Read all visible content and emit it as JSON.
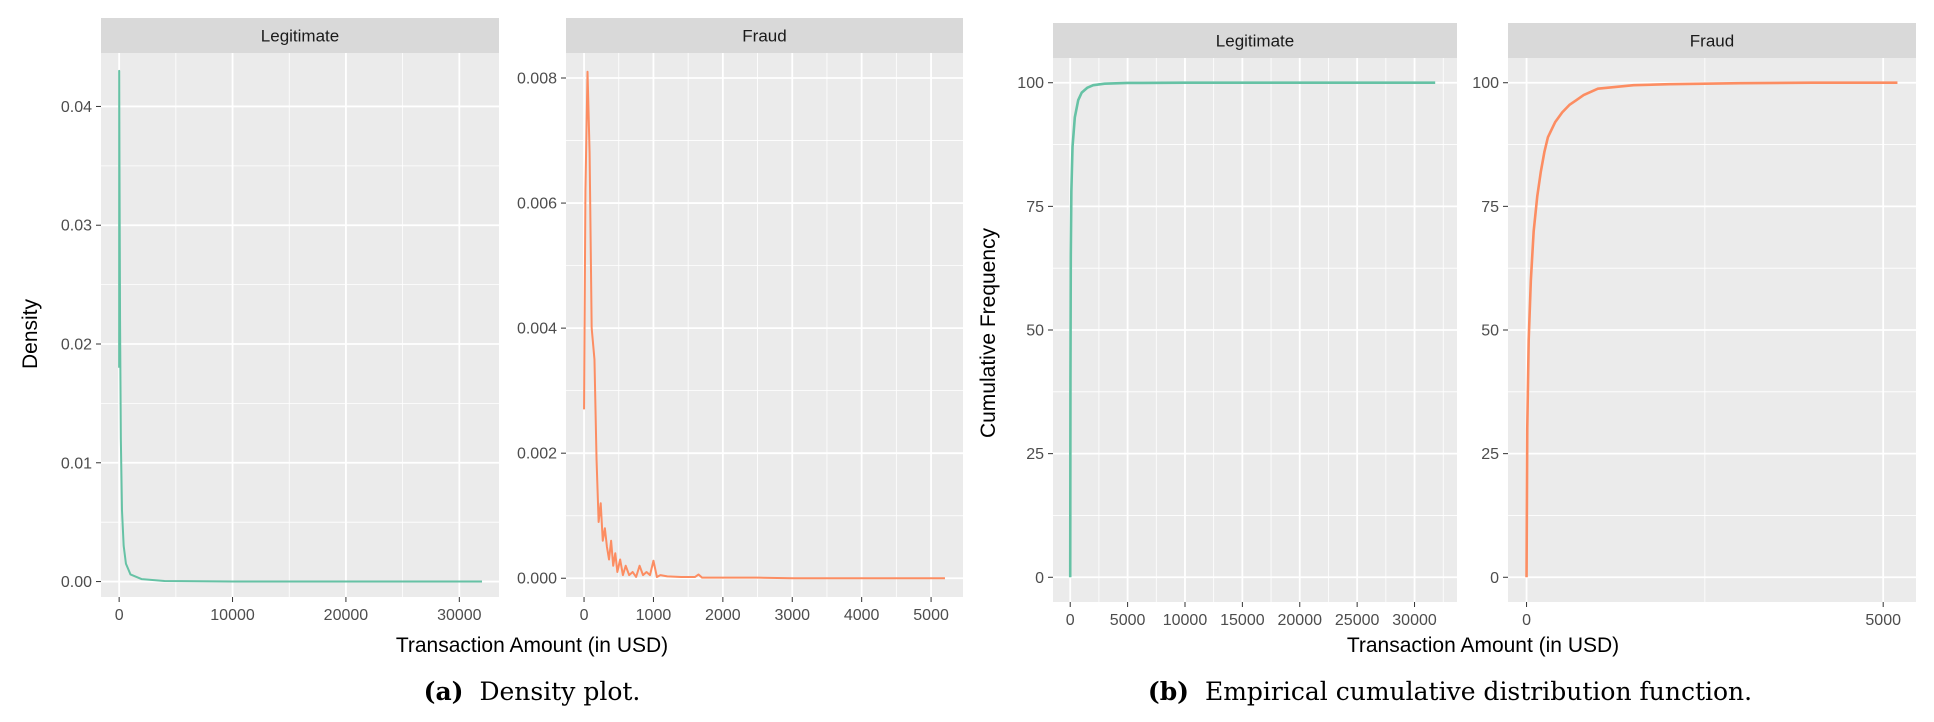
{
  "colors": {
    "legitimate": "#66c2a5",
    "fraud": "#fc8d62",
    "panel": "#ebebeb",
    "strip": "#d9d9d9",
    "grid": "#ffffff"
  },
  "captions": {
    "a": {
      "label": "(a)",
      "text": "Density plot."
    },
    "b": {
      "label": "(b)",
      "text": "Empirical cumulative distribution function."
    }
  },
  "chart_data": [
    {
      "type": "line",
      "ylabel": "Density",
      "xlabel": "Transaction Amount (in USD)",
      "panels": [
        {
          "strip": "Legitimate",
          "color_key": "legitimate",
          "xlim": [
            -1600,
            33500
          ],
          "ylim": [
            -0.0013,
            0.0445
          ],
          "x_ticks": [
            0,
            10000,
            20000,
            30000
          ],
          "x_tick_labels": [
            "0",
            "10000",
            "20000",
            "30000"
          ],
          "y_ticks": [
            0,
            0.01,
            0.02,
            0.03,
            0.04
          ],
          "y_tick_labels": [
            "0.00",
            "0.01",
            "0.02",
            "0.03",
            "0.04"
          ],
          "x": [
            0,
            5,
            30,
            80,
            150,
            250,
            400,
            600,
            1000,
            2000,
            4000,
            10000,
            20000,
            32000
          ],
          "y": [
            0.018,
            0.043,
            0.035,
            0.022,
            0.012,
            0.006,
            0.003,
            0.0015,
            0.0006,
            0.0002,
            5e-05,
            0.0,
            0.0,
            0.0
          ]
        },
        {
          "strip": "Fraud",
          "color_key": "fraud",
          "xlim": [
            -260,
            5460
          ],
          "ylim": [
            -0.0003,
            0.0084
          ],
          "x_ticks": [
            0,
            1000,
            2000,
            3000,
            4000,
            5000
          ],
          "x_tick_labels": [
            "0",
            "1000",
            "2000",
            "3000",
            "4000",
            "5000"
          ],
          "y_ticks": [
            0,
            0.002,
            0.004,
            0.006,
            0.008
          ],
          "y_tick_labels": [
            "0.000",
            "0.002",
            "0.004",
            "0.006",
            "0.008"
          ],
          "x": [
            0,
            20,
            50,
            80,
            110,
            150,
            180,
            210,
            240,
            270,
            300,
            330,
            360,
            390,
            420,
            450,
            480,
            520,
            560,
            600,
            650,
            700,
            750,
            800,
            850,
            900,
            950,
            1000,
            1050,
            1100,
            1200,
            1400,
            1600,
            1650,
            1700,
            2000,
            2500,
            3000,
            4000,
            5200
          ],
          "y": [
            0.0027,
            0.0062,
            0.0081,
            0.0068,
            0.004,
            0.0035,
            0.0019,
            0.0009,
            0.0012,
            0.0006,
            0.0008,
            0.0005,
            0.0003,
            0.0006,
            0.0002,
            0.0004,
            0.0001,
            0.0003,
            5e-05,
            0.0002,
            5e-05,
            0.0001,
            2e-05,
            0.0002,
            5e-05,
            0.0001,
            5e-05,
            0.00028,
            2e-05,
            5e-05,
            3e-05,
            2e-05,
            2e-05,
            6e-05,
            1e-05,
            1e-05,
            1e-05,
            0.0,
            0.0,
            0.0
          ]
        }
      ]
    },
    {
      "type": "line",
      "ylabel": "Cumulative Frequency",
      "xlabel": "Transaction Amount (in USD)",
      "panels": [
        {
          "strip": "Legitimate",
          "color_key": "legitimate",
          "xlim": [
            -1500,
            33700
          ],
          "ylim": [
            -5,
            105
          ],
          "x_ticks": [
            0,
            5000,
            10000,
            15000,
            20000,
            25000,
            30000
          ],
          "x_tick_labels": [
            "0",
            "5000",
            "10000",
            "15000",
            "20000",
            "25000",
            "30000"
          ],
          "y_ticks": [
            0,
            25,
            50,
            75,
            100
          ],
          "y_tick_labels": [
            "0",
            "25",
            "50",
            "75",
            "100"
          ],
          "x": [
            0,
            20,
            50,
            100,
            200,
            400,
            700,
            1000,
            1500,
            2000,
            3000,
            5000,
            10000,
            20000,
            31800
          ],
          "y": [
            0,
            40,
            65,
            78,
            87,
            93,
            96.5,
            98,
            99,
            99.5,
            99.8,
            99.95,
            100,
            100,
            100
          ]
        },
        {
          "strip": "Fraud",
          "color_key": "fraud",
          "xlim": [
            -260,
            5460
          ],
          "ylim": [
            -5,
            105
          ],
          "x_ticks": [
            0,
            5000
          ],
          "x_tick_labels": [
            "0",
            "5000"
          ],
          "y_ticks": [
            0,
            25,
            50,
            75,
            100
          ],
          "y_tick_labels": [
            "0",
            "25",
            "50",
            "75",
            "100"
          ],
          "x": [
            0,
            10,
            30,
            60,
            100,
            150,
            200,
            250,
            300,
            400,
            500,
            600,
            700,
            800,
            1000,
            1500,
            2000,
            3000,
            4000,
            5200
          ],
          "y": [
            0,
            30,
            48,
            60,
            70,
            77,
            82,
            86,
            89,
            92,
            94,
            95.5,
            96.5,
            97.5,
            98.8,
            99.5,
            99.7,
            99.9,
            100,
            100
          ]
        }
      ]
    }
  ]
}
